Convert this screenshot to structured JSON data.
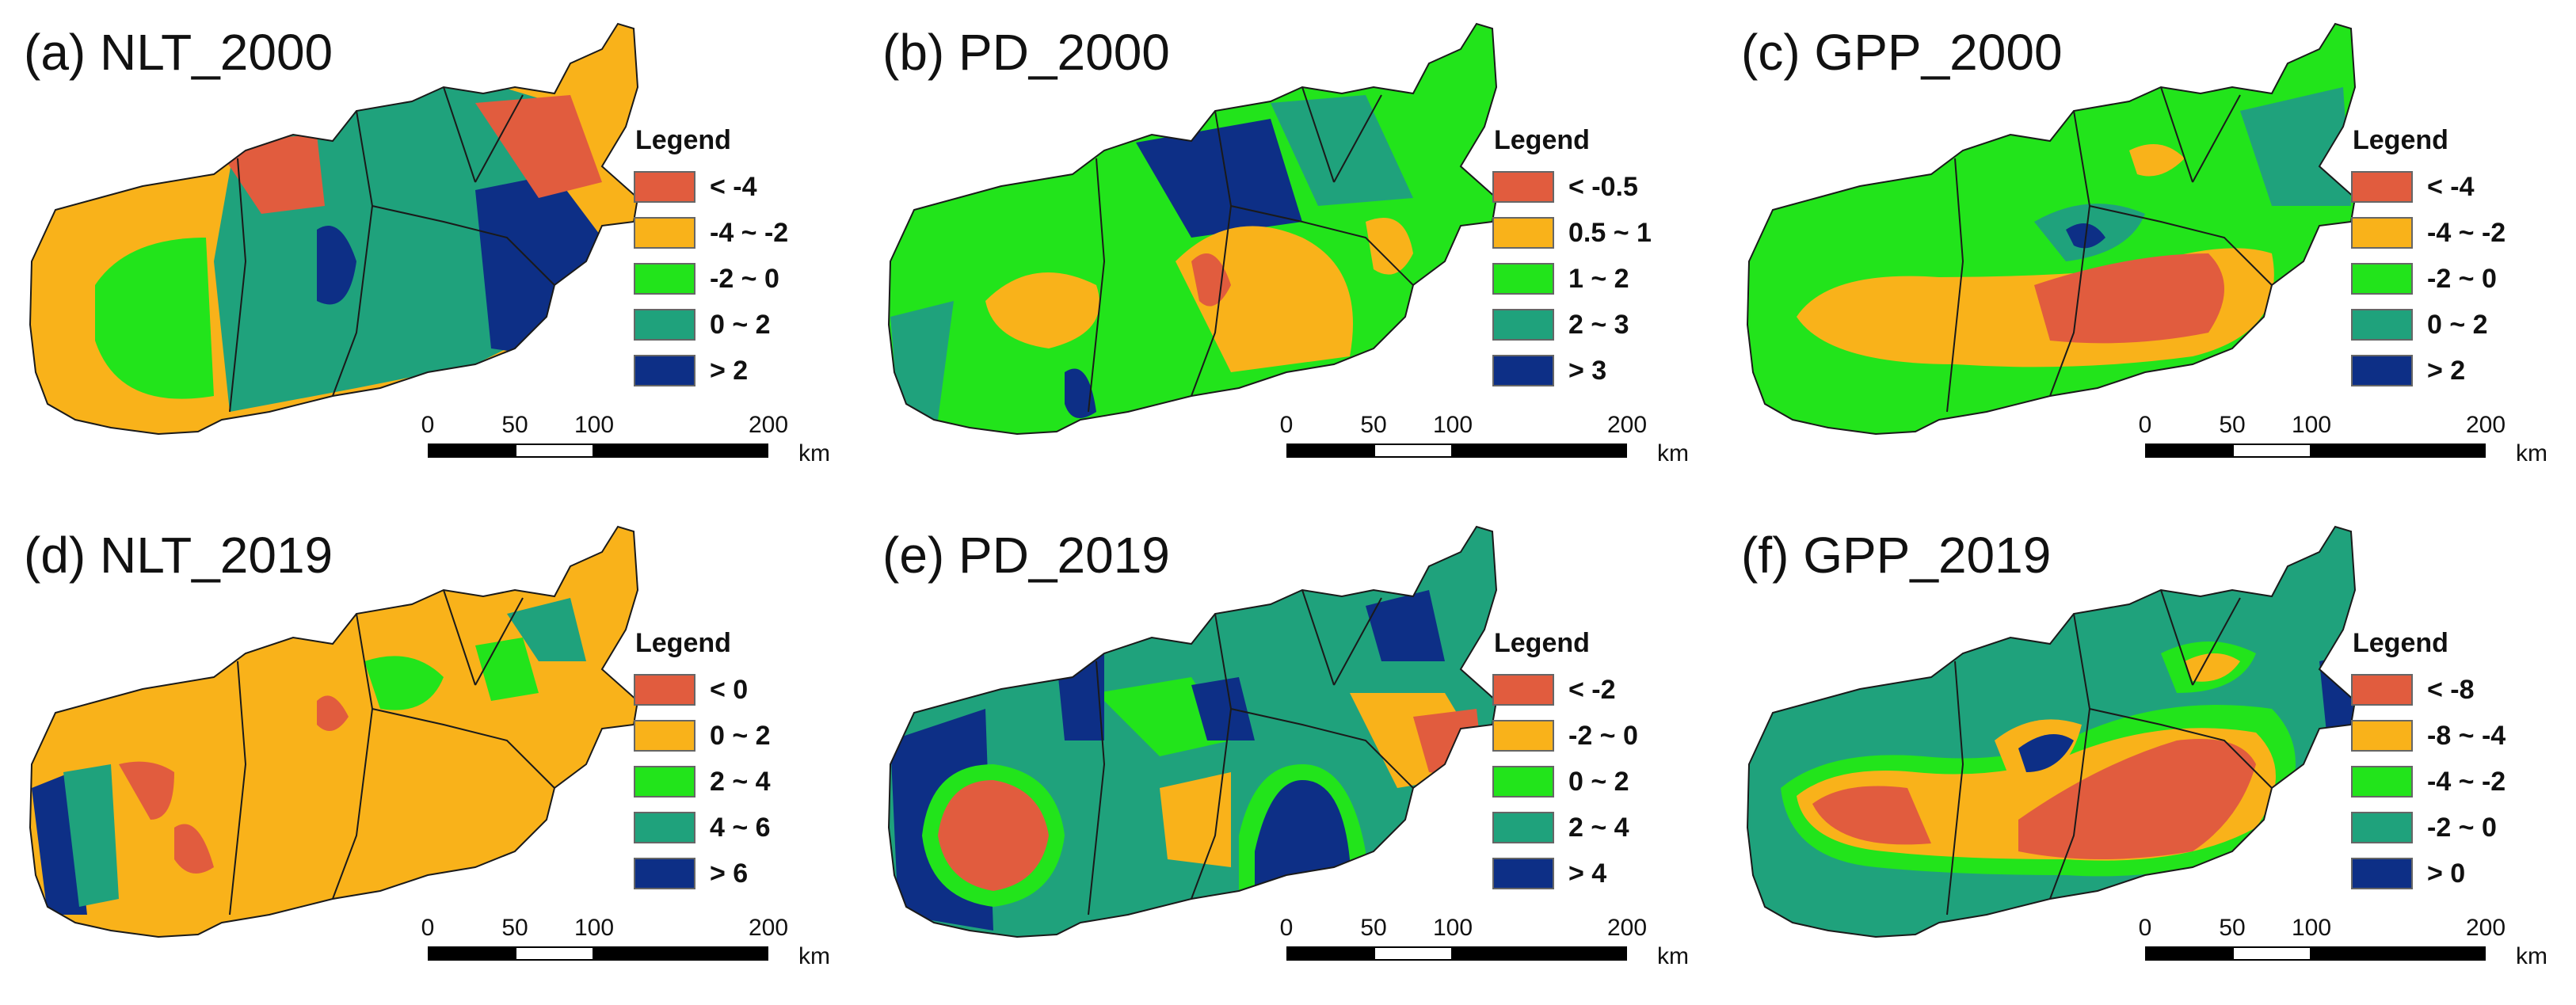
{
  "colors": {
    "red": "#e15c3e",
    "orange": "#f9b21a",
    "green": "#22e41b",
    "teal": "#1fa27c",
    "navy": "#0d2f86",
    "boundary": "#1a1a1a"
  },
  "scalebar": {
    "ticks": [
      "0",
      "50",
      "100",
      "200"
    ],
    "unit": "km"
  },
  "panels": [
    {
      "title": "(a) NLT_2000",
      "legend_title": "Legend",
      "legend": [
        {
          "label": "< -4",
          "color": "#e15c3e"
        },
        {
          "label": "-4 ~ -2",
          "color": "#f9b21a"
        },
        {
          "label": "-2 ~ 0",
          "color": "#22e41b"
        },
        {
          "label": "0 ~ 2",
          "color": "#1fa27c"
        },
        {
          "label": "> 2",
          "color": "#0d2f86"
        }
      ]
    },
    {
      "title": "(b) PD_2000",
      "legend_title": "Legend",
      "legend": [
        {
          "label": "< -0.5",
          "color": "#e15c3e"
        },
        {
          "label": "0.5 ~ 1",
          "color": "#f9b21a"
        },
        {
          "label": "1 ~ 2",
          "color": "#22e41b"
        },
        {
          "label": "2 ~ 3",
          "color": "#1fa27c"
        },
        {
          "label": "> 3",
          "color": "#0d2f86"
        }
      ]
    },
    {
      "title": "(c) GPP_2000",
      "legend_title": "Legend",
      "legend": [
        {
          "label": "< -4",
          "color": "#e15c3e"
        },
        {
          "label": "-4 ~ -2",
          "color": "#f9b21a"
        },
        {
          "label": "-2 ~ 0",
          "color": "#22e41b"
        },
        {
          "label": "0 ~ 2",
          "color": "#1fa27c"
        },
        {
          "label": "> 2",
          "color": "#0d2f86"
        }
      ]
    },
    {
      "title": "(d) NLT_2019",
      "legend_title": "Legend",
      "legend": [
        {
          "label": "< 0",
          "color": "#e15c3e"
        },
        {
          "label": "0 ~ 2",
          "color": "#f9b21a"
        },
        {
          "label": "2 ~ 4",
          "color": "#22e41b"
        },
        {
          "label": "4 ~ 6",
          "color": "#1fa27c"
        },
        {
          "label": "> 6",
          "color": "#0d2f86"
        }
      ]
    },
    {
      "title": "(e) PD_2019",
      "legend_title": "Legend",
      "legend": [
        {
          "label": "< -2",
          "color": "#e15c3e"
        },
        {
          "label": "-2 ~ 0",
          "color": "#f9b21a"
        },
        {
          "label": "0 ~ 2",
          "color": "#22e41b"
        },
        {
          "label": "2 ~ 4",
          "color": "#1fa27c"
        },
        {
          "label": "> 4",
          "color": "#0d2f86"
        }
      ]
    },
    {
      "title": "(f) GPP_2019",
      "legend_title": "Legend",
      "legend": [
        {
          "label": "< -8",
          "color": "#e15c3e"
        },
        {
          "label": "-8 ~ -4",
          "color": "#f9b21a"
        },
        {
          "label": "-4 ~ -2",
          "color": "#22e41b"
        },
        {
          "label": "-2 ~ 0",
          "color": "#1fa27c"
        },
        {
          "label": "> 0",
          "color": "#0d2f86"
        }
      ]
    }
  ]
}
